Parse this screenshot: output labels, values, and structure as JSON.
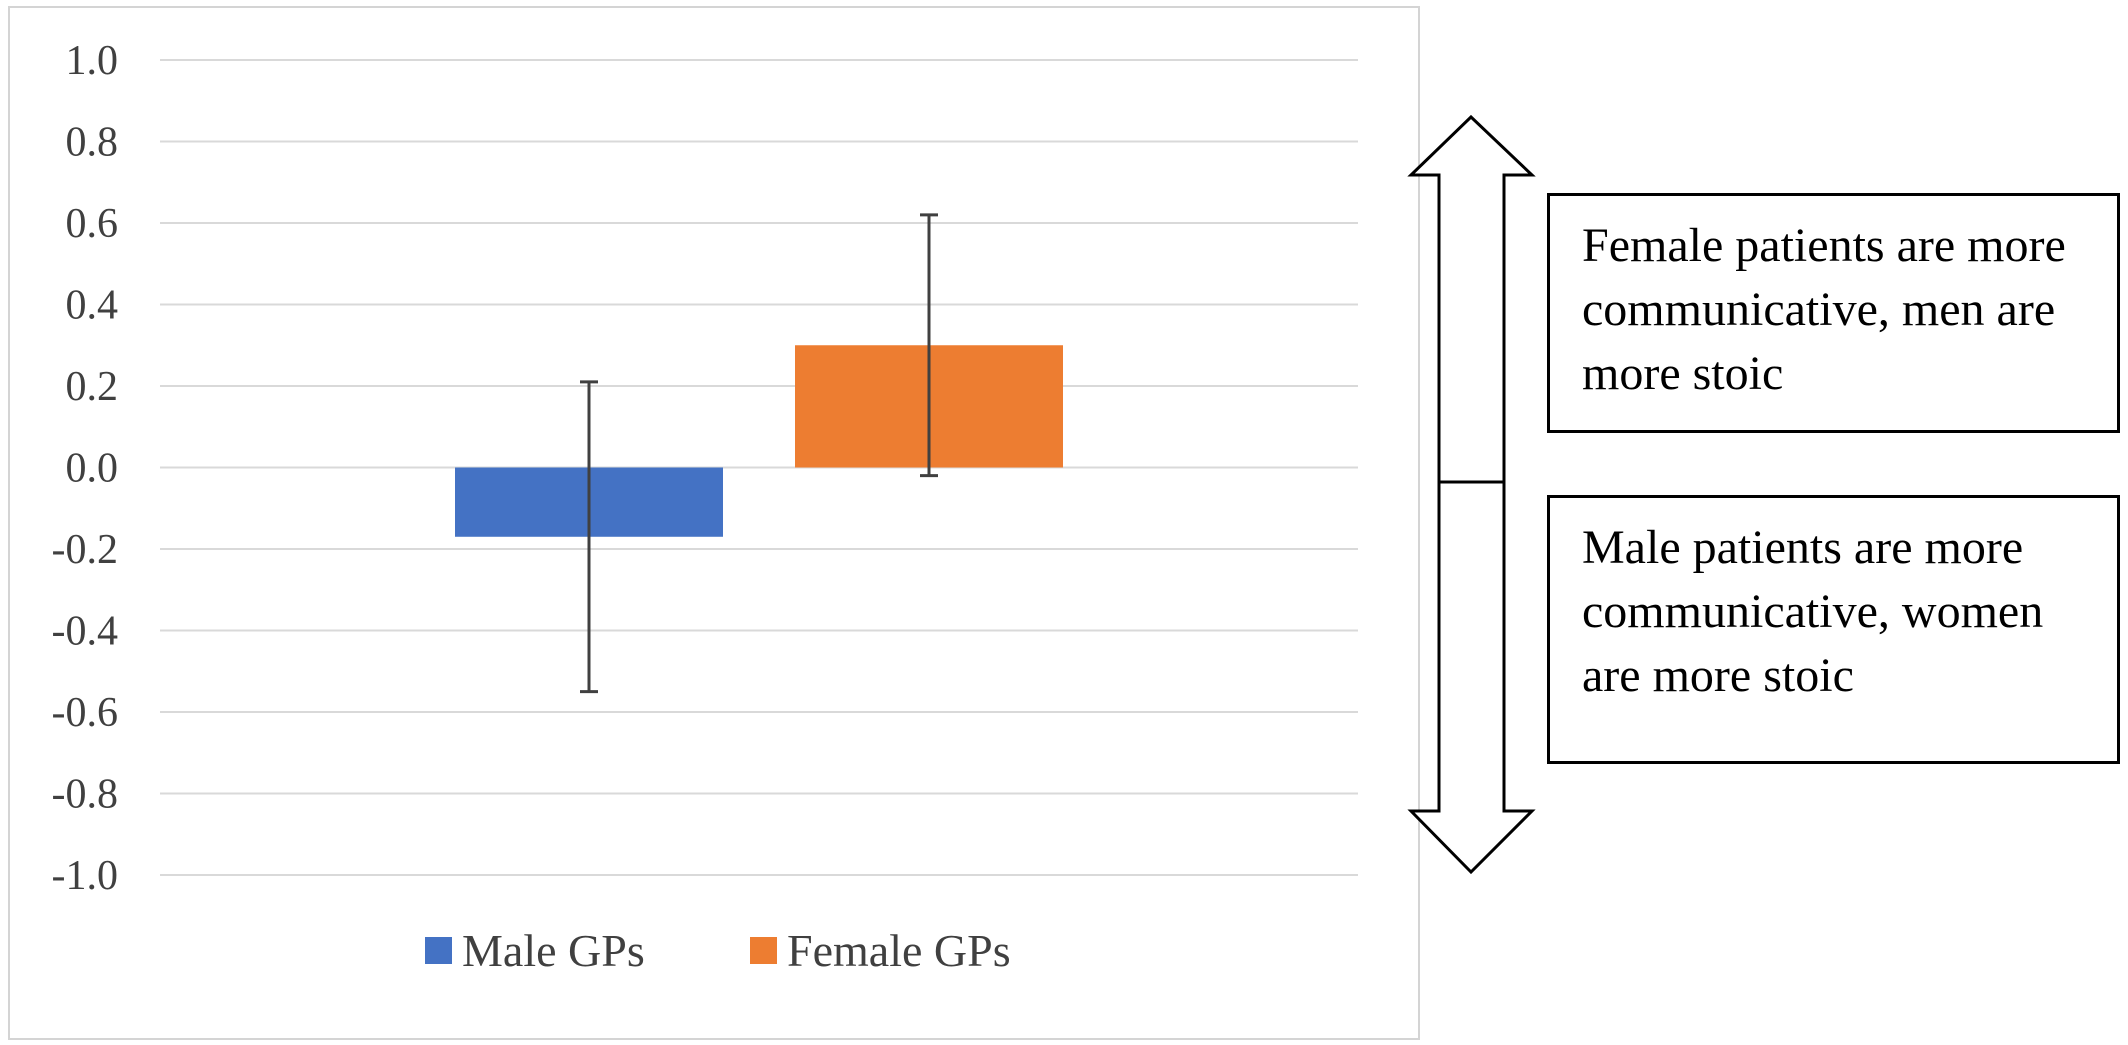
{
  "chart_data": {
    "type": "bar",
    "categories": [
      "Male GPs",
      "Female GPs"
    ],
    "series": [
      {
        "name": "Male GPs",
        "value": -0.17,
        "error_low": -0.55,
        "error_high": 0.21,
        "color": "#4472C4"
      },
      {
        "name": "Female GPs",
        "value": 0.3,
        "error_low": -0.02,
        "error_high": 0.62,
        "color": "#ED7D31"
      }
    ],
    "ylim": [
      -1.0,
      1.0
    ],
    "yticks": [
      "1.0",
      "0.8",
      "0.6",
      "0.4",
      "0.2",
      "0.0",
      "-0.2",
      "-0.4",
      "-0.6",
      "-0.8",
      "-1.0"
    ],
    "ytick_values": [
      1.0,
      0.8,
      0.6,
      0.4,
      0.2,
      0.0,
      -0.2,
      -0.4,
      -0.6,
      -0.8,
      -1.0
    ],
    "grid": true,
    "legend": {
      "placement": "bottom",
      "entries": [
        "Male GPs",
        "Female GPs"
      ]
    },
    "title": "",
    "xlabel": "",
    "ylabel": ""
  },
  "annotations": {
    "upper_text": "Female patients are more communicative, men are more stoic",
    "lower_text": "Male patients are more communicative, women are more stoic",
    "arrow": "double-headed vertical arrow"
  }
}
